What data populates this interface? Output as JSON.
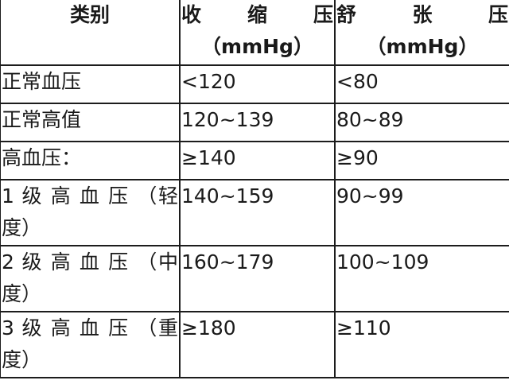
{
  "table": {
    "headers": [
      {
        "line1": "类别",
        "line2": ""
      },
      {
        "line1": "收 缩 压",
        "line2": "（mmHg）"
      },
      {
        "line1": "舒 张 压",
        "line2": "（mmHg）"
      }
    ],
    "rows": [
      {
        "category_l1": "正常血压",
        "category_l2": "",
        "systolic": "<120",
        "diastolic": "<80"
      },
      {
        "category_l1": "正常高值",
        "category_l2": "",
        "systolic": "120~139",
        "diastolic": "80~89"
      },
      {
        "category_l1": "高血压：",
        "category_l2": "",
        "systolic": "≥140",
        "diastolic": "≥90"
      },
      {
        "category_l1": "1 级 高 血 压 （轻",
        "category_l2": "度）",
        "systolic": "140~159",
        "diastolic": "90~99"
      },
      {
        "category_l1": "2 级 高 血 压 （中",
        "category_l2": "度）",
        "systolic": "160~179",
        "diastolic": "100~109"
      },
      {
        "category_l1": "3 级 高 血 压 （重",
        "category_l2": "度）",
        "systolic": "≥180",
        "diastolic": "≥110"
      }
    ]
  }
}
